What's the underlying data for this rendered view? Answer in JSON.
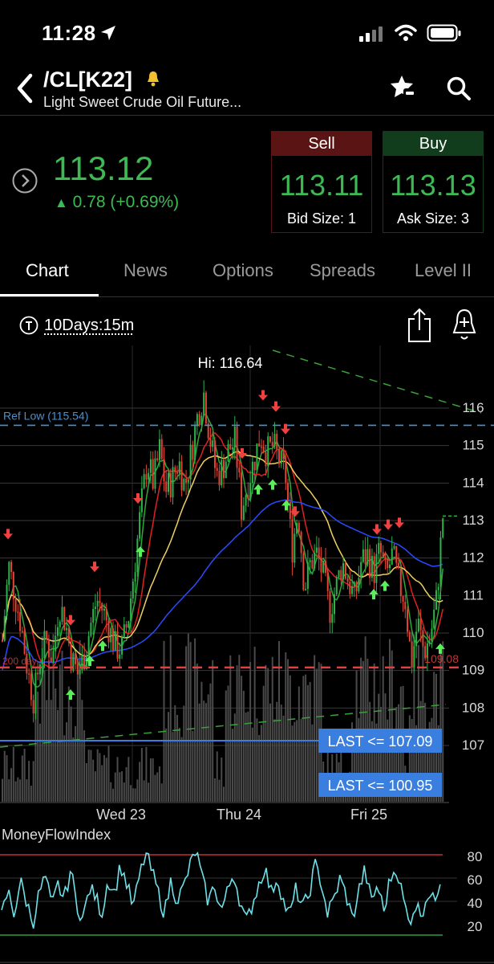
{
  "status_bar": {
    "time": "11:28"
  },
  "header": {
    "symbol": "/CL[K22]",
    "description": "Light Sweet Crude Oil Future..."
  },
  "quote": {
    "last": "113.12",
    "change": "0.78 (+0.69%)",
    "change_arrow": "▲",
    "sell": {
      "label": "Sell",
      "price": "113.11",
      "size": "Bid Size: 1"
    },
    "buy": {
      "label": "Buy",
      "price": "113.13",
      "size": "Ask Size: 3"
    },
    "colors": {
      "up": "#3dba54",
      "sell_header": "#5a1414",
      "buy_header": "#123d1c"
    }
  },
  "tabs": [
    "Chart",
    "News",
    "Options",
    "Spreads",
    "Level II"
  ],
  "active_tab": "Chart",
  "chart_controls": {
    "timeframe": "10Days:15m"
  },
  "chart_data": [
    {
      "type": "candlestick",
      "title": "",
      "annotations": {
        "high": "Hi: 116.64",
        "ref_low": "Ref Low (115.54)",
        "ref_low_value": 115.54,
        "left_level": "200 day",
        "right_level": "109.08",
        "level_value": 109.08,
        "alert_1": "LAST <= 107.09",
        "alert_1_value": 107.09,
        "alert_2": "LAST <= 100.95",
        "alert_2_value": 100.95,
        "last_price": 113.12
      },
      "y_ticks": [
        "116",
        "115",
        "114",
        "113",
        "112",
        "111",
        "110",
        "109",
        "108",
        "107"
      ],
      "x_ticks": [
        "Wed 23",
        "Thu 24",
        "Fri 25"
      ],
      "ylim": [
        106.4,
        116.8
      ],
      "price_path": [
        109.8,
        111.8,
        111.0,
        110.2,
        109.0,
        108.2,
        109.4,
        109.8,
        109.3,
        110.8,
        110.3,
        109.3,
        108.9,
        109.4,
        110.2,
        110.9,
        110.6,
        110.1,
        109.6,
        109.6,
        110.4,
        111.8,
        113.3,
        114.6,
        114.0,
        114.9,
        113.8,
        114.1,
        114.6,
        113.9,
        114.8,
        115.8,
        116.4,
        115.2,
        114.2,
        114.4,
        114.9,
        115.1,
        113.3,
        114.0,
        114.6,
        115.3,
        114.8,
        115.0,
        114.6,
        114.2,
        112.2,
        113.3,
        111.2,
        111.9,
        112.1,
        111.5,
        110.6,
        111.2,
        111.9,
        111.4,
        110.9,
        111.9,
        112.1,
        111.6,
        112.2,
        111.5,
        112.1,
        111.3,
        110.9,
        109.2,
        110.3,
        109.5,
        109.9,
        110.9,
        113.12
      ],
      "mfi": {
        "label": "MoneyFlowIndex",
        "y_ticks": [
          "80",
          "60",
          "40",
          "20"
        ],
        "levels": [
          80,
          20
        ],
        "values": [
          28,
          50,
          30,
          58,
          40,
          22,
          48,
          62,
          35,
          55,
          42,
          68,
          38,
          25,
          52,
          45,
          30,
          60,
          48,
          72,
          55,
          35,
          62,
          82,
          66,
          48,
          30,
          58,
          42,
          52,
          70,
          85,
          60,
          40,
          55,
          32,
          48,
          66,
          42,
          22,
          38,
          55,
          70,
          48,
          62,
          40,
          28,
          52,
          35,
          45,
          72,
          58,
          30,
          42,
          60,
          46,
          25,
          50,
          68,
          40,
          55,
          32,
          60,
          70,
          45,
          22,
          38,
          30,
          48,
          40,
          60
        ]
      },
      "colors": {
        "up": "#2cb34a",
        "down": "#e04535",
        "sma_fast": "#2fa83a",
        "sma_mid": "#e02020",
        "sma_slow": "#f0d060",
        "sma_long": "#2a4bff",
        "ref_line": "#4a8fd0",
        "alert_box": "#3a7fe0",
        "mfi_line": "#6ee0e8"
      }
    }
  ]
}
